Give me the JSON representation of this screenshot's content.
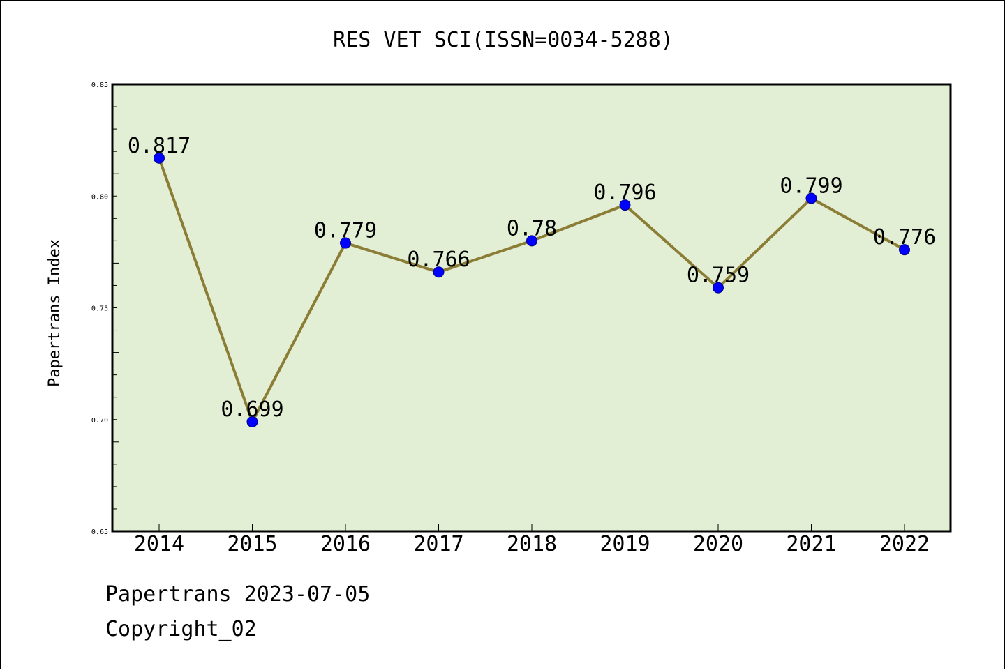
{
  "chart_data": {
    "type": "line",
    "title": "RES VET SCI(ISSN=0034-5288)",
    "ylabel": "Papertrans Index",
    "xlabel": "",
    "categories": [
      "2014",
      "2015",
      "2016",
      "2017",
      "2018",
      "2019",
      "2020",
      "2021",
      "2022"
    ],
    "values": [
      0.817,
      0.699,
      0.779,
      0.766,
      0.78,
      0.796,
      0.759,
      0.799,
      0.776
    ],
    "data_labels": [
      "0.817",
      "0.699",
      "0.779",
      "0.766",
      "0.78",
      "0.796",
      "0.759",
      "0.799",
      "0.776"
    ],
    "ylim": [
      0.65,
      0.85
    ],
    "yticks": [
      0.65,
      0.7,
      0.75,
      0.8,
      0.85
    ],
    "ytick_labels": [
      "0.65",
      "0.70",
      "0.75",
      "0.80",
      "0.85"
    ],
    "grid": false,
    "colors": {
      "plot_background": "#e2efd5",
      "line": "#8b7d35",
      "marker": "#0000ff"
    }
  },
  "footer": {
    "date": "Papertrans 2023-07-05",
    "copyright": "Copyright_02"
  }
}
